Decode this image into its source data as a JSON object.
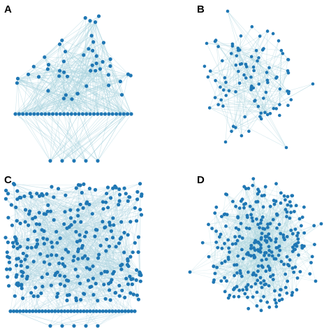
{
  "panels": [
    {
      "id": "a",
      "letter": "A"
    },
    {
      "id": "b",
      "letter": "B"
    },
    {
      "id": "c",
      "letter": "C"
    },
    {
      "id": "d",
      "letter": "D"
    }
  ],
  "colors": {
    "node": "#1f77b4",
    "edge": "#a9d3de",
    "background": "#ffffff",
    "label": "#000000"
  }
}
